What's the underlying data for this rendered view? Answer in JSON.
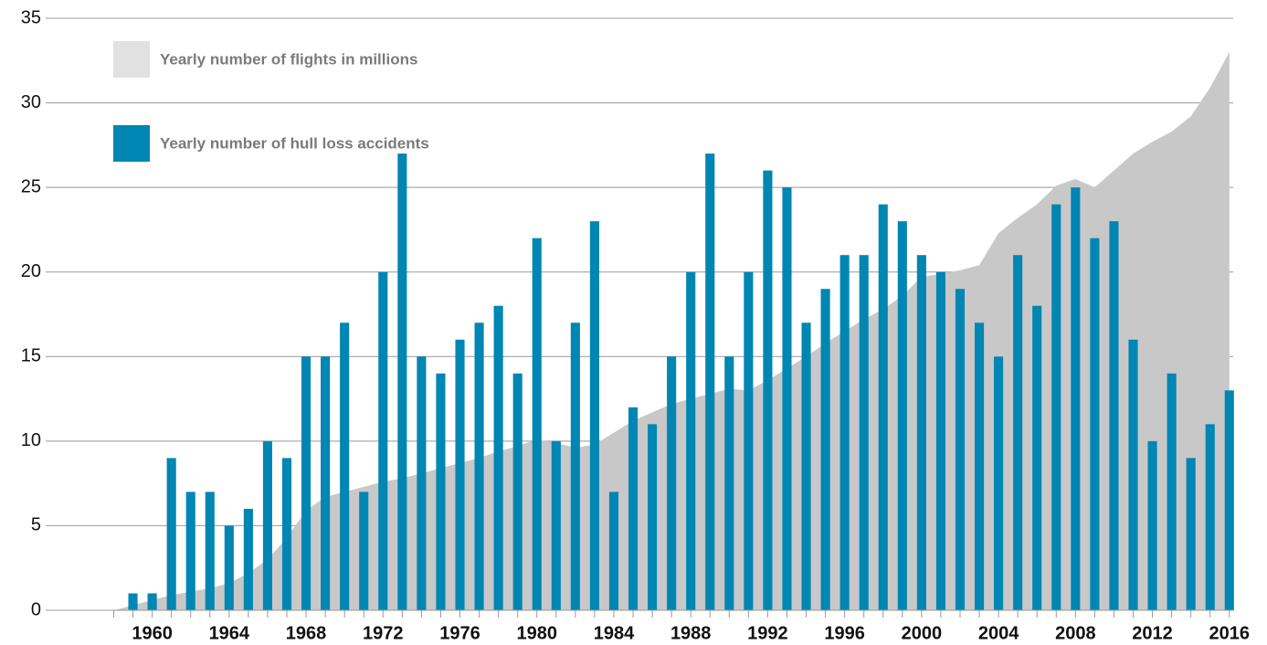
{
  "chart_data": {
    "type": "bar",
    "x": [
      1958,
      1959,
      1960,
      1961,
      1962,
      1963,
      1964,
      1965,
      1966,
      1967,
      1968,
      1969,
      1970,
      1971,
      1972,
      1973,
      1974,
      1975,
      1976,
      1977,
      1978,
      1979,
      1980,
      1981,
      1982,
      1983,
      1984,
      1985,
      1986,
      1987,
      1988,
      1989,
      1990,
      1991,
      1992,
      1993,
      1994,
      1995,
      1996,
      1997,
      1998,
      1999,
      2000,
      2001,
      2002,
      2003,
      2004,
      2005,
      2006,
      2007,
      2008,
      2009,
      2010,
      2011,
      2012,
      2013,
      2014,
      2015,
      2016
    ],
    "series": [
      {
        "name": "Yearly number of flights in millions",
        "type": "area",
        "color": "#c8c8c8",
        "values": [
          0,
          0.3,
          0.6,
          0.9,
          1.1,
          1.3,
          1.6,
          2.2,
          3.0,
          4.3,
          5.9,
          6.7,
          7.0,
          7.3,
          7.6,
          7.8,
          8.1,
          8.4,
          8.7,
          9.0,
          9.4,
          9.7,
          10.1,
          9.9,
          9.6,
          9.8,
          10.5,
          11.2,
          11.7,
          12.2,
          12.5,
          12.8,
          13.1,
          13.0,
          13.6,
          14.3,
          15.0,
          15.8,
          16.5,
          17.2,
          17.8,
          18.6,
          19.7,
          19.9,
          20.1,
          20.4,
          22.3,
          23.2,
          24.0,
          25.1,
          25.5,
          25.0,
          26.0,
          27.0,
          27.7,
          28.3,
          29.2,
          30.9,
          33.0
        ]
      },
      {
        "name": "Yearly number of hull loss accidents",
        "type": "bar",
        "color": "#0086b3",
        "values": [
          null,
          1,
          1,
          9,
          7,
          7,
          5,
          6,
          10,
          9,
          15,
          15,
          17,
          7,
          20,
          27,
          15,
          14,
          16,
          17,
          18,
          14,
          22,
          10,
          17,
          23,
          7,
          12,
          11,
          15,
          20,
          27,
          15,
          20,
          26,
          25,
          17,
          19,
          21,
          21,
          24,
          23,
          21,
          20,
          19,
          17,
          15,
          21,
          18,
          24,
          25,
          22,
          23,
          16,
          10,
          14,
          9,
          11,
          13
        ]
      }
    ],
    "xlim": [
      1956.6,
      2016.2
    ],
    "xticks": [
      1960,
      1964,
      1968,
      1972,
      1976,
      1980,
      1984,
      1988,
      1992,
      1996,
      2000,
      2004,
      2008,
      2012,
      2016
    ],
    "ylim": [
      0,
      35
    ],
    "yticks": [
      0,
      5,
      10,
      15,
      20,
      25,
      30,
      35
    ],
    "grid": true,
    "legend": "upper left"
  }
}
